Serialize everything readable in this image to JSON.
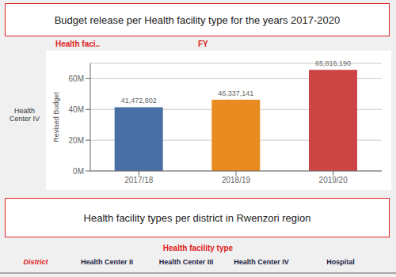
{
  "chart_data": {
    "type": "bar",
    "title": "Budget release per Health facility type for the years 2017-2020",
    "categories": [
      "2017/18",
      "2018/19",
      "2019/20"
    ],
    "values": [
      41472802,
      46337141,
      65816190
    ],
    "value_labels": [
      "41,472,802",
      "46,337,141",
      "65,816,190"
    ],
    "colors": [
      "#4a6fa5",
      "#e88b20",
      "#cc4444"
    ],
    "y_label": "Revised Budget",
    "ylim": [
      0,
      70000000
    ],
    "yticks": [
      {
        "value": 0,
        "label": "0M"
      },
      {
        "value": 20000000,
        "label": "20M"
      },
      {
        "value": 40000000,
        "label": "40M"
      },
      {
        "value": 60000000,
        "label": "60M"
      }
    ],
    "grid": true,
    "data_labels": true,
    "annotations": [
      "Health faci..",
      "FY",
      "Health\nCenter IV",
      "Health facility types per district in Rwenzori region",
      "Health facility type",
      "District",
      "Health Center II",
      "Health Center III",
      "Health Center IV",
      "Hospital"
    ]
  }
}
